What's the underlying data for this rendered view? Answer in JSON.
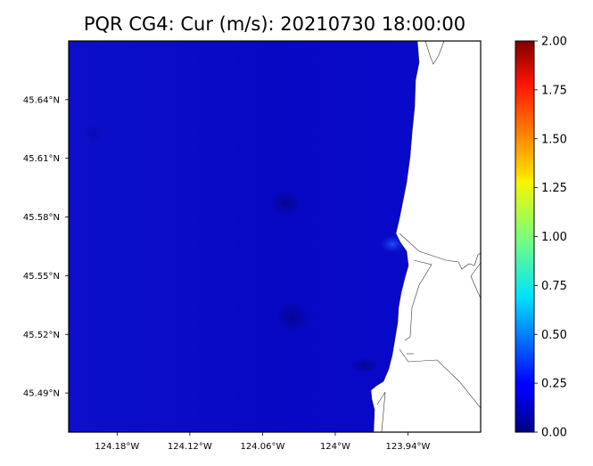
{
  "title": "PQR CG4: Cur (m/s): 20210730 18:00:00",
  "map": {
    "lon_range": [
      -124.22,
      -123.88
    ],
    "lat_range": [
      45.47,
      45.67
    ],
    "lon_ticks": [
      {
        "value": -124.18,
        "label": "124.18°W"
      },
      {
        "value": -124.12,
        "label": "124.12°W"
      },
      {
        "value": -124.06,
        "label": "124.06°W"
      },
      {
        "value": -124.0,
        "label": "124°W"
      },
      {
        "value": -123.94,
        "label": "123.94°W"
      }
    ],
    "lat_ticks": [
      {
        "value": 45.64,
        "label": "45.64°N"
      },
      {
        "value": 45.61,
        "label": "45.61°N"
      },
      {
        "value": 45.58,
        "label": "45.58°N"
      },
      {
        "value": 45.55,
        "label": "45.55°N"
      },
      {
        "value": 45.52,
        "label": "45.52°N"
      },
      {
        "value": 45.49,
        "label": "45.49°N"
      }
    ]
  },
  "colorbar": {
    "colormap": "jet",
    "range": [
      0,
      2
    ],
    "ticks": [
      "0.00",
      "0.25",
      "0.50",
      "0.75",
      "1.00",
      "1.25",
      "1.50",
      "1.75",
      "2.00"
    ],
    "tick_values": [
      0,
      0.25,
      0.5,
      0.75,
      1.0,
      1.25,
      1.5,
      1.75,
      2.0
    ]
  },
  "colors": {
    "field_base": "#0707c6",
    "land": "#ffffff",
    "coastline": "#333333"
  }
}
